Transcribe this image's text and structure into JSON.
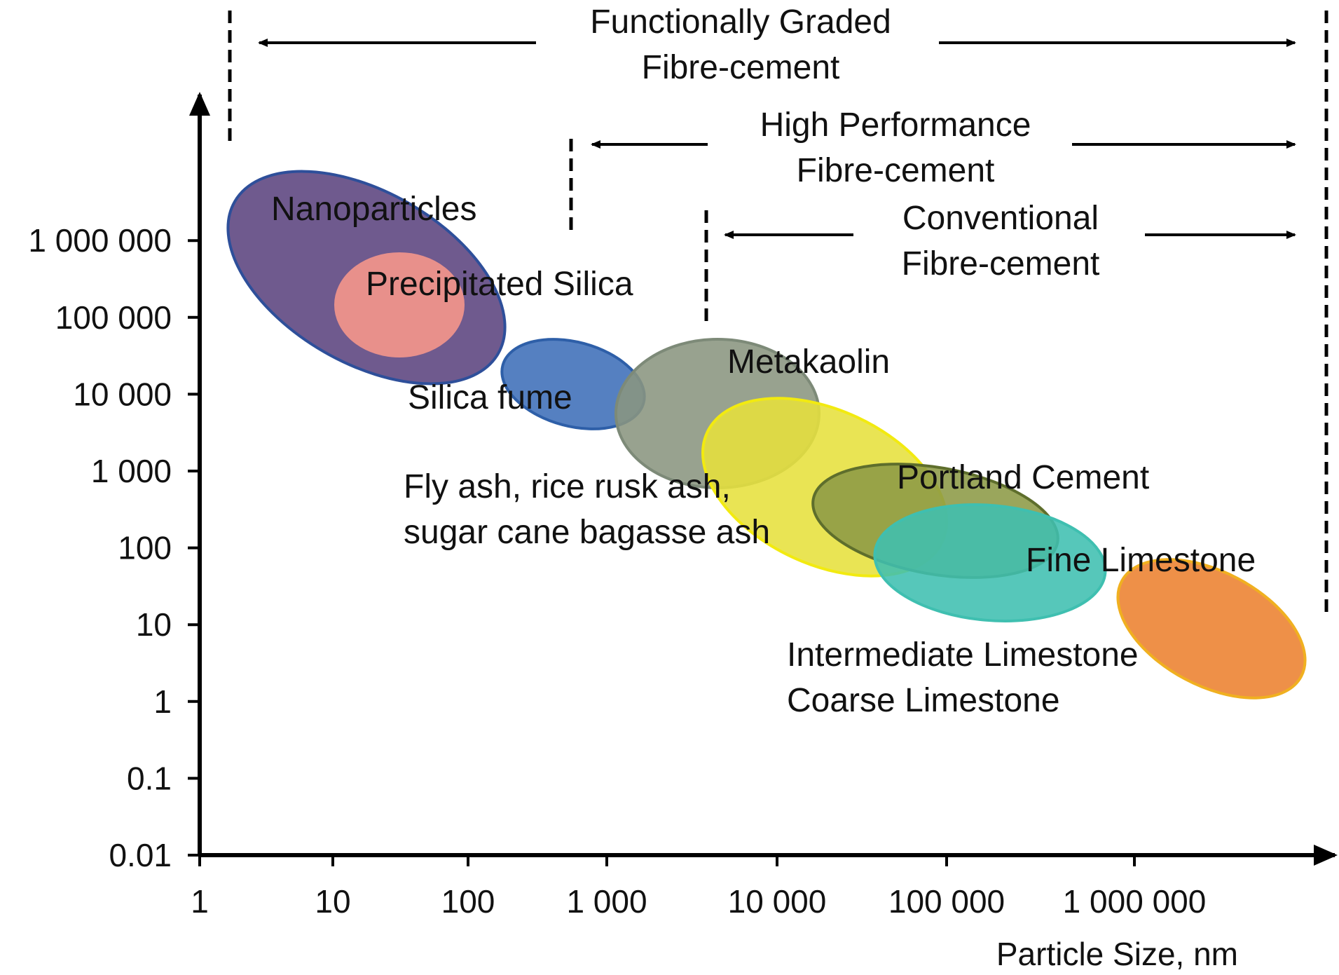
{
  "chart_data": {
    "type": "scatter",
    "xlabel": "Particle Size, nm",
    "ylabel": "",
    "x_scale": "log",
    "y_scale": "log",
    "x_ticks": [
      "1",
      "10",
      "100",
      "1 000",
      "10 000",
      "100 000",
      "1 000 000"
    ],
    "y_ticks": [
      "0.01",
      "0.1",
      "1",
      "10",
      "100",
      "1 000",
      "10 000",
      "100 000",
      "1 000 000"
    ],
    "regions": [
      {
        "name": "Functionally Graded\nFibre-cement",
        "x_from": 1.5,
        "x_to": 20000000
      },
      {
        "name": "High Performance\nFibre-cement",
        "x_from": 600,
        "x_to": 20000000
      },
      {
        "name": "Conventional\nFibre-cement",
        "x_from": 4000,
        "x_to": 20000000
      }
    ],
    "materials": [
      {
        "name": "Nanoparticles",
        "color": "#6f5a8e",
        "stroke": "#2e4f9a"
      },
      {
        "name": "Precipitated Silica",
        "color": "#e8908b",
        "stroke": "#e8908b"
      },
      {
        "name": "Silica fume",
        "color": "#3d6eb8",
        "stroke": "#2e5fa8"
      },
      {
        "name": "Metakaolin",
        "color": "#8a9580",
        "stroke": "#7d8a78"
      },
      {
        "name": "Fly ash, rice rusk ash,\nsugar cane bagasse ash",
        "color": "#e6e03c",
        "stroke": "#f2ea10"
      },
      {
        "name": "Portland Cement",
        "color": "#8c9a45",
        "stroke": "#5e6e2c"
      },
      {
        "name": "Fine Limestone",
        "color": "#3fbfb0",
        "stroke": "#3fbfb0"
      },
      {
        "name": "Intermediate Limestone\nCoarse Limestone",
        "color": "#ee9048",
        "stroke": "#f0b020"
      }
    ]
  }
}
